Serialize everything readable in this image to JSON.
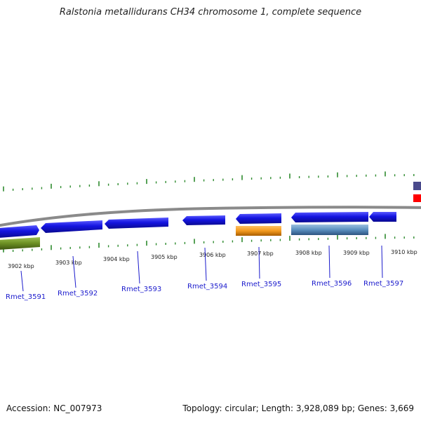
{
  "title": "Ralstonia metallidurans CH34 chromosome 1, complete sequence",
  "footer": {
    "accession": "Accession: NC_007973",
    "summary": "Topology: circular; Length: 3,928,089 bp; Genes: 3,669"
  },
  "colors": {
    "backbone": "#8a8a8a",
    "cds": "#1414e0",
    "tick": "#2e8b2e",
    "rna_orange": "#f39a1e",
    "feature_steelblue": "#5a8fbf",
    "feature_olive": "#6b8e23",
    "label_blue": "#1a1acc",
    "edge_purple": "#4a4a8c",
    "edge_red": "#ff0000"
  },
  "ruler": {
    "unit": "kbp",
    "labels": [
      "3902 kbp",
      "3903 kbp",
      "3904 kbp",
      "3905 kbp",
      "3906 kbp",
      "3907 kbp",
      "3908 kbp",
      "3909 kbp",
      "3910 kbp"
    ]
  },
  "genes": [
    {
      "name": "Rmet_3591"
    },
    {
      "name": "Rmet_3592"
    },
    {
      "name": "Rmet_3593"
    },
    {
      "name": "Rmet_3594"
    },
    {
      "name": "Rmet_3595"
    },
    {
      "name": "Rmet_3596"
    },
    {
      "name": "Rmet_3597"
    }
  ]
}
